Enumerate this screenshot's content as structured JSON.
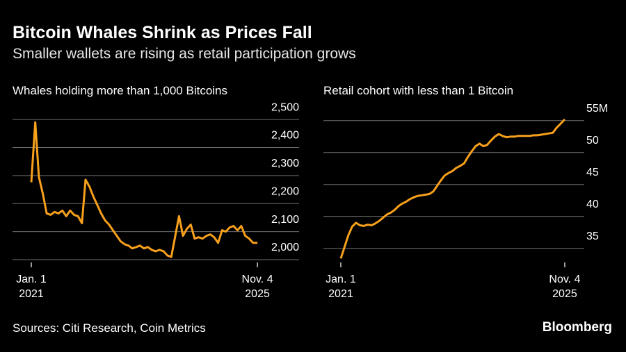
{
  "title": "Bitcoin Whales Shrink as Prices Fall",
  "subtitle": "Smaller wallets are rising as retail participation grows",
  "source": "Sources: Citi Research, Coin Metrics",
  "brand": "Bloomberg",
  "chart_data": [
    {
      "type": "line",
      "title": "Whales holding more than 1,000 Bitcoins",
      "color": "#f7a01c",
      "grid": true,
      "x": [
        "2021-01-01",
        "2021-02-01",
        "2021-03-01",
        "2021-04-01",
        "2021-05-01",
        "2021-06-01",
        "2021-07-01",
        "2021-08-01",
        "2021-09-01",
        "2021-10-01",
        "2021-11-01",
        "2021-12-01",
        "2022-01-01",
        "2022-02-01",
        "2022-03-01",
        "2022-04-01",
        "2022-05-01",
        "2022-06-01",
        "2022-07-01",
        "2022-08-01",
        "2022-09-01",
        "2022-10-01",
        "2022-11-01",
        "2022-12-01",
        "2023-01-01",
        "2023-02-01",
        "2023-03-01",
        "2023-04-01",
        "2023-05-01",
        "2023-06-01",
        "2023-07-01",
        "2023-08-01",
        "2023-09-01",
        "2023-10-01",
        "2023-11-01",
        "2023-12-01",
        "2024-01-01",
        "2024-02-01",
        "2024-03-01",
        "2024-04-01",
        "2024-05-01",
        "2024-06-01",
        "2024-07-01",
        "2024-08-01",
        "2024-09-01",
        "2024-10-01",
        "2024-11-01",
        "2024-12-01",
        "2025-01-01",
        "2025-02-01",
        "2025-03-01",
        "2025-04-01",
        "2025-05-01",
        "2025-06-01",
        "2025-07-01",
        "2025-08-01",
        "2025-09-01",
        "2025-10-01",
        "2025-11-04"
      ],
      "values": [
        2276,
        2490,
        2295,
        2235,
        2165,
        2160,
        2170,
        2165,
        2175,
        2155,
        2175,
        2160,
        2155,
        2130,
        2285,
        2260,
        2225,
        2195,
        2165,
        2140,
        2125,
        2105,
        2085,
        2065,
        2055,
        2050,
        2040,
        2045,
        2050,
        2040,
        2045,
        2035,
        2030,
        2035,
        2030,
        2015,
        2010,
        2085,
        2155,
        2085,
        2110,
        2125,
        2075,
        2080,
        2075,
        2085,
        2090,
        2080,
        2060,
        2105,
        2100,
        2115,
        2120,
        2105,
        2120,
        2085,
        2075,
        2060,
        2060
      ],
      "xlim": [
        "2020-08-07",
        "2026-09-26"
      ],
      "xticks": [
        {
          "value": "2021-01-01",
          "label": "Jan. 1\n2021"
        },
        {
          "value": "2025-11-04",
          "label": "Nov. 4\n2025"
        }
      ],
      "ylim": [
        1995,
        2530
      ],
      "yticks": [
        {
          "value": 2000,
          "label": "2,000"
        },
        {
          "value": 2100,
          "label": "2,100"
        },
        {
          "value": 2200,
          "label": "2,200"
        },
        {
          "value": 2300,
          "label": "2,300"
        },
        {
          "value": 2400,
          "label": "2,400"
        },
        {
          "value": 2500,
          "label": "2,500"
        }
      ]
    },
    {
      "type": "line",
      "title": "Retail cohort with less than 1 Bitcoin",
      "color": "#f7a01c",
      "grid": true,
      "x": [
        "2021-01-01",
        "2021-02-01",
        "2021-03-01",
        "2021-04-01",
        "2021-05-01",
        "2021-06-01",
        "2021-07-01",
        "2021-08-01",
        "2021-09-01",
        "2021-10-01",
        "2021-11-01",
        "2021-12-01",
        "2022-01-01",
        "2022-02-01",
        "2022-03-01",
        "2022-04-01",
        "2022-05-01",
        "2022-06-01",
        "2022-07-01",
        "2022-08-01",
        "2022-09-01",
        "2022-10-01",
        "2022-11-01",
        "2022-12-01",
        "2023-01-01",
        "2023-02-01",
        "2023-03-01",
        "2023-04-01",
        "2023-05-01",
        "2023-06-01",
        "2023-07-01",
        "2023-08-01",
        "2023-09-01",
        "2023-10-01",
        "2023-11-01",
        "2023-12-01",
        "2024-01-01",
        "2024-02-01",
        "2024-03-01",
        "2024-04-01",
        "2024-05-01",
        "2024-06-01",
        "2024-07-01",
        "2024-08-01",
        "2024-09-01",
        "2024-10-01",
        "2024-11-01",
        "2024-12-01",
        "2025-01-01",
        "2025-02-01",
        "2025-03-01",
        "2025-04-01",
        "2025-05-01",
        "2025-06-01",
        "2025-07-01",
        "2025-08-01",
        "2025-09-01",
        "2025-10-01",
        "2025-11-04"
      ],
      "values": [
        33.4,
        35.3,
        37.0,
        38.4,
        39.0,
        38.6,
        38.5,
        38.7,
        38.6,
        38.9,
        39.3,
        39.8,
        40.3,
        40.6,
        41.0,
        41.6,
        42.0,
        42.3,
        42.7,
        43.0,
        43.2,
        43.3,
        43.4,
        43.5,
        43.9,
        44.8,
        45.6,
        46.4,
        46.8,
        47.1,
        47.6,
        47.9,
        48.3,
        49.3,
        50.2,
        51.0,
        51.4,
        51.0,
        51.2,
        51.9,
        52.5,
        52.9,
        52.6,
        52.4,
        52.5,
        52.5,
        52.6,
        52.6,
        52.6,
        52.6,
        52.7,
        52.7,
        52.8,
        52.9,
        53.0,
        53.1,
        53.9,
        54.5,
        55.2
      ],
      "xlim": [
        "2020-08-17",
        "2026-04-07"
      ],
      "xticks": [
        {
          "value": "2021-01-01",
          "label": "Jan. 1\n2021"
        },
        {
          "value": "2025-11-04",
          "label": "Nov. 4\n2025"
        }
      ],
      "ylim": [
        33,
        56.5
      ],
      "yticks": [
        35,
        40,
        45,
        50,
        {
          "value": 55,
          "label": "55M"
        }
      ]
    }
  ]
}
